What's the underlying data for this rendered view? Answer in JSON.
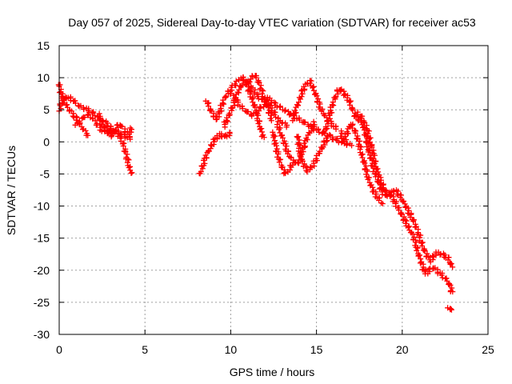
{
  "chart_data": {
    "type": "scatter",
    "title": "Day 057 of 2025, Sidereal Day-to-day VTEC variation (SDTVAR) for receiver ac53",
    "xlabel": "GPS time / hours",
    "ylabel": "SDTVAR / TECUs",
    "xlim": [
      0,
      25
    ],
    "ylim": [
      -30,
      15
    ],
    "xticks": [
      0,
      5,
      10,
      15,
      20,
      25
    ],
    "yticks": [
      -30,
      -25,
      -20,
      -15,
      -10,
      -5,
      0,
      5,
      10,
      15
    ],
    "x_tick_labels": [
      "0",
      "5",
      "10",
      "15",
      "20",
      "25"
    ],
    "y_tick_labels": [
      "-30",
      "-25",
      "-20",
      "-15",
      "-10",
      "-5",
      "0",
      "5",
      "10",
      "15"
    ],
    "grid": true,
    "marker": "+",
    "series": [
      {
        "name": "SDTVAR",
        "color": "#ff0000",
        "tracks": [
          [
            [
              0.0,
              5.0
            ],
            [
              0.2,
              6.5
            ],
            [
              0.4,
              7.0
            ],
            [
              0.6,
              6.8
            ],
            [
              0.8,
              6.5
            ],
            [
              1.0,
              6.0
            ],
            [
              1.2,
              5.5
            ],
            [
              1.5,
              5.2
            ],
            [
              1.8,
              4.8
            ],
            [
              2.1,
              4.2
            ],
            [
              2.4,
              3.6
            ],
            [
              2.7,
              3.0
            ],
            [
              3.0,
              2.2
            ],
            [
              3.3,
              1.6
            ],
            [
              3.6,
              1.2
            ],
            [
              3.9,
              0.8
            ],
            [
              4.2,
              0.5
            ]
          ],
          [
            [
              0.0,
              9.0
            ],
            [
              0.1,
              7.5
            ],
            [
              0.2,
              7.0
            ],
            [
              0.35,
              6.2
            ],
            [
              0.5,
              5.3
            ],
            [
              0.7,
              4.6
            ],
            [
              0.9,
              4.0
            ],
            [
              1.1,
              3.2
            ],
            [
              1.3,
              2.4
            ],
            [
              1.5,
              1.6
            ],
            [
              1.7,
              1.0
            ]
          ],
          [
            [
              1.0,
              2.5
            ],
            [
              1.3,
              3.5
            ],
            [
              1.6,
              4.2
            ],
            [
              1.9,
              3.8
            ],
            [
              2.2,
              2.8
            ],
            [
              2.5,
              1.8
            ],
            [
              2.8,
              1.5
            ],
            [
              3.1,
              1.8
            ],
            [
              3.4,
              1.5
            ],
            [
              3.7,
              0.0
            ],
            [
              3.9,
              -2.0
            ],
            [
              4.1,
              -4.0
            ],
            [
              4.2,
              -4.8
            ]
          ],
          [
            [
              2.3,
              4.2
            ],
            [
              2.5,
              3.0
            ],
            [
              2.7,
              2.0
            ],
            [
              2.9,
              1.2
            ],
            [
              3.1,
              1.0
            ],
            [
              3.3,
              2.0
            ],
            [
              3.5,
              2.8
            ],
            [
              3.7,
              2.2
            ],
            [
              3.9,
              1.6
            ],
            [
              4.1,
              1.2
            ],
            [
              4.2,
              2.0
            ]
          ],
          [
            [
              8.2,
              -5.0
            ],
            [
              8.4,
              -3.5
            ],
            [
              8.6,
              -2.0
            ],
            [
              8.8,
              -1.0
            ],
            [
              9.0,
              0.0
            ],
            [
              9.2,
              0.8
            ],
            [
              9.4,
              1.2
            ],
            [
              9.6,
              0.8
            ],
            [
              9.8,
              1.0
            ],
            [
              10.0,
              1.3
            ]
          ],
          [
            [
              8.6,
              6.5
            ],
            [
              8.8,
              5.0
            ],
            [
              9.0,
              4.2
            ],
            [
              9.2,
              3.5
            ],
            [
              9.4,
              5.0
            ],
            [
              9.6,
              6.5
            ],
            [
              9.8,
              7.5
            ],
            [
              10.0,
              8.2
            ],
            [
              10.2,
              8.8
            ],
            [
              10.4,
              9.5
            ],
            [
              10.6,
              10.0
            ],
            [
              10.8,
              9.8
            ],
            [
              11.0,
              9.2
            ],
            [
              11.3,
              8.2
            ],
            [
              11.6,
              7.0
            ],
            [
              11.9,
              6.5
            ],
            [
              12.2,
              6.8
            ],
            [
              12.5,
              6.0
            ],
            [
              12.8,
              5.5
            ],
            [
              13.1,
              5.0
            ],
            [
              13.4,
              4.5
            ],
            [
              13.7,
              4.0
            ],
            [
              14.0,
              3.5
            ],
            [
              14.3,
              3.0
            ],
            [
              14.6,
              2.5
            ],
            [
              14.9,
              2.0
            ],
            [
              15.2,
              1.6
            ],
            [
              15.5,
              1.2
            ],
            [
              15.8,
              0.8
            ],
            [
              16.1,
              0.4
            ],
            [
              16.4,
              0.0
            ],
            [
              16.7,
              -0.3
            ],
            [
              17.0,
              -0.5
            ]
          ],
          [
            [
              9.6,
              2.5
            ],
            [
              9.8,
              3.5
            ],
            [
              10.0,
              4.8
            ],
            [
              10.2,
              6.0
            ],
            [
              10.4,
              7.5
            ],
            [
              10.6,
              8.8
            ],
            [
              10.8,
              9.5
            ],
            [
              11.0,
              8.5
            ],
            [
              11.2,
              7.2
            ],
            [
              11.4,
              5.5
            ],
            [
              11.6,
              3.5
            ],
            [
              11.8,
              1.5
            ],
            [
              11.9,
              0.5
            ]
          ],
          [
            [
              10.0,
              7.5
            ],
            [
              10.3,
              6.5
            ],
            [
              10.6,
              5.5
            ],
            [
              10.9,
              4.8
            ],
            [
              11.2,
              4.2
            ],
            [
              11.5,
              4.5
            ],
            [
              11.8,
              5.5
            ],
            [
              12.1,
              6.2
            ],
            [
              12.4,
              5.0
            ],
            [
              12.7,
              3.8
            ],
            [
              13.0,
              3.0
            ],
            [
              13.3,
              2.5
            ]
          ],
          [
            [
              11.0,
              9.0
            ],
            [
              11.2,
              10.0
            ],
            [
              11.4,
              10.5
            ],
            [
              11.6,
              9.5
            ],
            [
              11.8,
              8.0
            ],
            [
              12.0,
              6.5
            ],
            [
              12.2,
              5.0
            ],
            [
              12.4,
              3.5
            ]
          ],
          [
            [
              12.7,
              3.0
            ],
            [
              12.9,
              1.5
            ],
            [
              13.1,
              0.0
            ],
            [
              13.3,
              -1.5
            ],
            [
              13.5,
              -2.5
            ],
            [
              13.7,
              -3.0
            ],
            [
              13.9,
              -3.5
            ],
            [
              14.1,
              -2.0
            ],
            [
              14.3,
              -0.5
            ],
            [
              14.5,
              1.0
            ],
            [
              14.7,
              2.0
            ],
            [
              14.9,
              3.0
            ]
          ],
          [
            [
              12.5,
              1.5
            ],
            [
              12.6,
              -0.5
            ],
            [
              12.8,
              -2.5
            ],
            [
              13.0,
              -4.0
            ],
            [
              13.2,
              -5.0
            ],
            [
              13.4,
              -4.5
            ],
            [
              13.6,
              -3.2
            ]
          ],
          [
            [
              13.6,
              3.5
            ],
            [
              13.8,
              5.0
            ],
            [
              14.0,
              6.5
            ],
            [
              14.2,
              8.0
            ],
            [
              14.4,
              9.0
            ],
            [
              14.6,
              9.5
            ],
            [
              14.8,
              8.5
            ],
            [
              15.0,
              7.0
            ],
            [
              15.2,
              5.5
            ],
            [
              15.4,
              4.5
            ],
            [
              15.6,
              3.5
            ],
            [
              15.8,
              3.0
            ],
            [
              16.0,
              2.5
            ],
            [
              16.2,
              2.0
            ]
          ],
          [
            [
              13.9,
              1.0
            ],
            [
              14.0,
              -1.0
            ],
            [
              14.1,
              -2.5
            ],
            [
              14.3,
              -3.8
            ],
            [
              14.5,
              -4.5
            ],
            [
              14.7,
              -4.0
            ],
            [
              14.9,
              -3.2
            ],
            [
              15.1,
              -2.0
            ],
            [
              15.3,
              -1.0
            ],
            [
              15.5,
              0.0
            ],
            [
              15.7,
              1.0
            ]
          ],
          [
            [
              15.5,
              1.5
            ],
            [
              15.7,
              3.5
            ],
            [
              15.9,
              5.5
            ],
            [
              16.1,
              7.0
            ],
            [
              16.3,
              8.2
            ],
            [
              16.5,
              8.0
            ],
            [
              16.7,
              7.2
            ],
            [
              16.9,
              6.5
            ],
            [
              17.1,
              5.0
            ],
            [
              17.3,
              3.8
            ],
            [
              17.5,
              3.5
            ],
            [
              17.7,
              2.8
            ],
            [
              17.9,
              0.5
            ],
            [
              18.1,
              -2.0
            ],
            [
              18.3,
              -4.0
            ],
            [
              18.5,
              -5.5
            ],
            [
              18.7,
              -7.0
            ],
            [
              18.9,
              -8.0
            ],
            [
              19.1,
              -8.5
            ],
            [
              19.3,
              -8.2
            ],
            [
              19.5,
              -7.5
            ],
            [
              19.7,
              -7.8
            ],
            [
              19.9,
              -8.5
            ],
            [
              20.1,
              -9.5
            ],
            [
              20.3,
              -10.5
            ],
            [
              20.5,
              -11.5
            ],
            [
              20.7,
              -12.5
            ],
            [
              20.9,
              -14.0
            ],
            [
              21.1,
              -15.5
            ],
            [
              21.3,
              -17.0
            ],
            [
              21.5,
              -18.0
            ],
            [
              21.7,
              -18.5
            ],
            [
              21.9,
              -17.5
            ],
            [
              22.1,
              -17.3
            ],
            [
              22.3,
              -17.5
            ],
            [
              22.5,
              -17.8
            ],
            [
              22.7,
              -18.2
            ],
            [
              22.9,
              -19.5
            ]
          ],
          [
            [
              16.4,
              1.5
            ],
            [
              16.6,
              0.0
            ],
            [
              16.8,
              1.5
            ],
            [
              17.0,
              2.8
            ],
            [
              17.2,
              2.0
            ],
            [
              17.4,
              0.5
            ],
            [
              17.6,
              -1.5
            ],
            [
              17.8,
              -3.5
            ],
            [
              18.0,
              -5.5
            ],
            [
              18.2,
              -7.0
            ],
            [
              18.4,
              -8.0
            ],
            [
              18.6,
              -8.8
            ],
            [
              18.8,
              -9.5
            ]
          ],
          [
            [
              17.4,
              4.5
            ],
            [
              17.6,
              4.0
            ],
            [
              17.8,
              3.0
            ],
            [
              18.0,
              1.5
            ],
            [
              18.2,
              -0.5
            ],
            [
              18.4,
              -3.0
            ],
            [
              18.6,
              -5.0
            ],
            [
              18.8,
              -6.5
            ],
            [
              19.0,
              -7.5
            ],
            [
              19.2,
              -8.0
            ],
            [
              19.4,
              -8.5
            ],
            [
              19.6,
              -9.5
            ],
            [
              19.8,
              -10.5
            ],
            [
              20.0,
              -11.5
            ],
            [
              20.2,
              -12.5
            ],
            [
              20.4,
              -13.5
            ],
            [
              20.6,
              -14.5
            ],
            [
              20.8,
              -16.0
            ],
            [
              21.0,
              -18.0
            ],
            [
              21.2,
              -19.5
            ],
            [
              21.4,
              -20.5
            ],
            [
              21.6,
              -20.0
            ],
            [
              21.8,
              -19.5
            ],
            [
              22.0,
              -20.0
            ],
            [
              22.2,
              -20.5
            ],
            [
              22.4,
              -21.0
            ],
            [
              22.6,
              -21.5
            ],
            [
              22.8,
              -22.5
            ],
            [
              22.9,
              -23.5
            ]
          ],
          [
            [
              22.7,
              -25.8
            ],
            [
              22.8,
              -26.0
            ],
            [
              22.9,
              -26.3
            ]
          ]
        ]
      }
    ]
  }
}
